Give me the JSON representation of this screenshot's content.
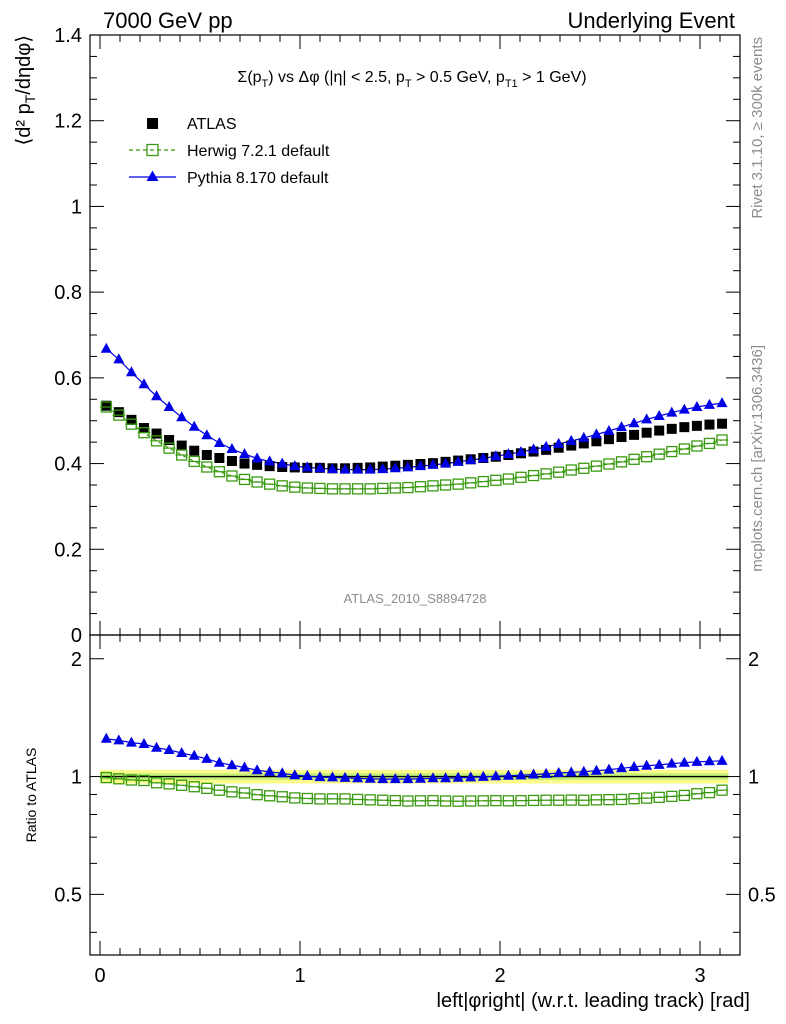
{
  "header": {
    "left": "7000 GeV pp",
    "right": "Underlying Event"
  },
  "side_labels": {
    "rivet": "Rivet 3.1.10, ≥ 300k events",
    "mcplots": "mcplots.cern.ch [arXiv:1306.3436]"
  },
  "watermark": "ATLAS_2010_S8894728",
  "colors": {
    "atlas": "#000000",
    "herwig": "#3a9a10",
    "pythia": "#0000e6",
    "band_inner": "#c6f07a",
    "band_outer": "#fbfb8c"
  },
  "chart_data": [
    {
      "type": "scatter",
      "title": "Σ(p_T) vs Δφ (|η| < 2.5, p_T > 0.5 GeV, p_T1 > 1 GeV)",
      "ylabel": "⟨d² p_T/dηdφ⟩",
      "xlim": [
        -0.05,
        3.2
      ],
      "ylim": [
        0,
        1.4
      ],
      "yticks": [
        "0",
        "0.2",
        "0.4",
        "0.6",
        "0.8",
        "1",
        "1.2",
        "1.4"
      ],
      "grid": false,
      "legend_position": "top-left",
      "x": [
        0.0314,
        0.0942,
        0.1571,
        0.2199,
        0.2827,
        0.3456,
        0.4084,
        0.4712,
        0.5341,
        0.5969,
        0.6597,
        0.7226,
        0.7854,
        0.8482,
        0.9111,
        0.9739,
        1.0367,
        1.0996,
        1.1624,
        1.2252,
        1.2881,
        1.3509,
        1.4137,
        1.4765,
        1.5394,
        1.6022,
        1.665,
        1.7279,
        1.7907,
        1.8535,
        1.9164,
        1.9792,
        2.042,
        2.1049,
        2.1677,
        2.2305,
        2.2934,
        2.3562,
        2.419,
        2.4819,
        2.5447,
        2.6075,
        2.6704,
        2.7332,
        2.796,
        2.8588,
        2.9217,
        2.9845,
        3.0473,
        3.1102
      ],
      "series": [
        {
          "name": "ATLAS",
          "marker": "filled-square",
          "values": [
            0.535,
            0.52,
            0.502,
            0.483,
            0.47,
            0.455,
            0.442,
            0.43,
            0.42,
            0.413,
            0.406,
            0.4,
            0.397,
            0.394,
            0.392,
            0.391,
            0.39,
            0.39,
            0.389,
            0.389,
            0.39,
            0.391,
            0.393,
            0.395,
            0.397,
            0.399,
            0.401,
            0.404,
            0.407,
            0.41,
            0.413,
            0.416,
            0.42,
            0.424,
            0.428,
            0.432,
            0.437,
            0.442,
            0.447,
            0.452,
            0.457,
            0.462,
            0.467,
            0.472,
            0.477,
            0.481,
            0.485,
            0.488,
            0.491,
            0.493
          ]
        },
        {
          "name": "Herwig 7.2.1 default",
          "marker": "open-square",
          "values": [
            0.532,
            0.513,
            0.492,
            0.472,
            0.453,
            0.436,
            0.42,
            0.405,
            0.392,
            0.381,
            0.371,
            0.363,
            0.357,
            0.352,
            0.348,
            0.345,
            0.343,
            0.342,
            0.341,
            0.341,
            0.341,
            0.341,
            0.342,
            0.343,
            0.344,
            0.346,
            0.348,
            0.35,
            0.352,
            0.355,
            0.358,
            0.361,
            0.364,
            0.368,
            0.372,
            0.376,
            0.38,
            0.385,
            0.389,
            0.394,
            0.399,
            0.404,
            0.41,
            0.416,
            0.422,
            0.428,
            0.434,
            0.441,
            0.447,
            0.455
          ]
        },
        {
          "name": "Pythia 8.170 default",
          "marker": "filled-triangle",
          "values": [
            0.668,
            0.643,
            0.613,
            0.585,
            0.557,
            0.532,
            0.508,
            0.486,
            0.466,
            0.448,
            0.434,
            0.422,
            0.412,
            0.405,
            0.4,
            0.394,
            0.391,
            0.389,
            0.387,
            0.386,
            0.386,
            0.386,
            0.387,
            0.389,
            0.391,
            0.394,
            0.397,
            0.4,
            0.404,
            0.408,
            0.412,
            0.417,
            0.422,
            0.427,
            0.433,
            0.439,
            0.446,
            0.453,
            0.46,
            0.468,
            0.476,
            0.485,
            0.494,
            0.503,
            0.511,
            0.519,
            0.526,
            0.532,
            0.537,
            0.541
          ]
        }
      ]
    },
    {
      "type": "scatter",
      "ylabel": "Ratio to ATLAS",
      "xlabel": "left|φright| (w.r.t. leading track) [rad]",
      "xlim": [
        -0.05,
        3.2
      ],
      "ylim": [
        0.35,
        2.3
      ],
      "ylog": true,
      "xticks": [
        "0",
        "1",
        "2",
        "3"
      ],
      "yticks": [
        "0.5",
        "1",
        "2"
      ],
      "reference_line": 1,
      "uncertainty_band": {
        "inner": 0.02,
        "outer": 0.04
      },
      "series": [
        {
          "name": "Herwig 7.2.1 default",
          "values": [
            0.994,
            0.987,
            0.98,
            0.977,
            0.964,
            0.958,
            0.95,
            0.942,
            0.933,
            0.923,
            0.914,
            0.908,
            0.899,
            0.893,
            0.888,
            0.882,
            0.879,
            0.877,
            0.877,
            0.877,
            0.874,
            0.872,
            0.87,
            0.868,
            0.866,
            0.867,
            0.868,
            0.866,
            0.865,
            0.866,
            0.867,
            0.868,
            0.867,
            0.868,
            0.869,
            0.87,
            0.87,
            0.871,
            0.87,
            0.872,
            0.873,
            0.874,
            0.878,
            0.881,
            0.885,
            0.89,
            0.895,
            0.904,
            0.91,
            0.923
          ]
        },
        {
          "name": "Pythia 8.170 default",
          "values": [
            1.249,
            1.237,
            1.221,
            1.211,
            1.185,
            1.169,
            1.149,
            1.13,
            1.11,
            1.085,
            1.069,
            1.055,
            1.038,
            1.028,
            1.02,
            1.008,
            1.003,
            0.997,
            0.995,
            0.992,
            0.99,
            0.987,
            0.985,
            0.985,
            0.985,
            0.987,
            0.99,
            0.99,
            0.993,
            0.995,
            0.998,
            1.002,
            1.005,
            1.007,
            1.012,
            1.016,
            1.021,
            1.025,
            1.029,
            1.035,
            1.042,
            1.05,
            1.058,
            1.066,
            1.071,
            1.079,
            1.085,
            1.09,
            1.094,
            1.097
          ]
        }
      ]
    }
  ]
}
